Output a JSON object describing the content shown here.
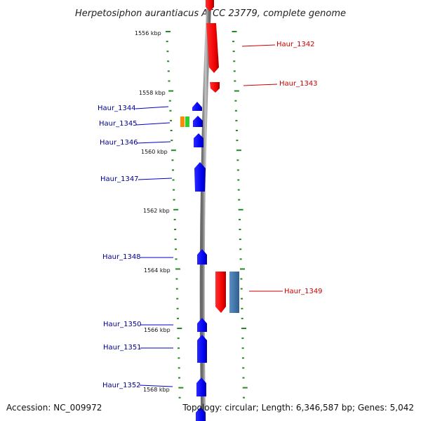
{
  "title": "Herpetosiphon aurantiacus ATCC 23779, complete genome",
  "accession": "Accession: NC_009972",
  "topology": "Topology: circular; Length: 6,346,587 bp; Genes: 5,042",
  "colors": {
    "backbone": "#888888",
    "tick": "#228b22",
    "forward_gene": "#ff0000",
    "reverse_gene": "#0000ff",
    "feature_orange": "#ff8c00",
    "feature_green": "#32cd32",
    "feature_steelblue": "#4682b4",
    "left_label": "#00008b",
    "right_label": "#cc0000"
  },
  "scale_labels": [
    "1556 kbp",
    "1558 kbp",
    "1560 kbp",
    "1562 kbp",
    "1564 kbp",
    "1566 kbp",
    "1568 kbp"
  ],
  "left_genes": [
    "Haur_1344",
    "Haur_1345",
    "Haur_1346",
    "Haur_1347",
    "Haur_1348",
    "Haur_1350",
    "Haur_1351",
    "Haur_1352"
  ],
  "right_genes": [
    "Haur_1342",
    "Haur_1343",
    "Haur_1349"
  ]
}
